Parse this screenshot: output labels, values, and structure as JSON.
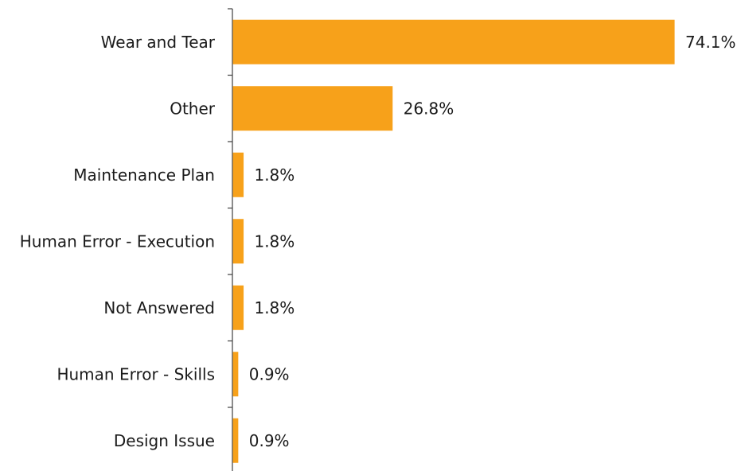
{
  "chart_data": {
    "type": "bar",
    "orientation": "horizontal",
    "categories": [
      "Wear and Tear",
      "Other",
      "Maintenance Plan",
      "Human Error - Execution",
      "Not Answered",
      "Human Error - Skills",
      "Design Issue"
    ],
    "values": [
      74.1,
      26.8,
      1.8,
      1.8,
      1.8,
      0.9,
      0.9
    ],
    "value_labels": [
      "74.1%",
      "26.8%",
      "1.8%",
      "1.8%",
      "1.8%",
      "0.9%",
      "0.9%"
    ],
    "bar_color": "#F7A11A",
    "axis_color": "#404040",
    "xlim": [
      0,
      74.1
    ],
    "grid": false,
    "legend": "none"
  }
}
